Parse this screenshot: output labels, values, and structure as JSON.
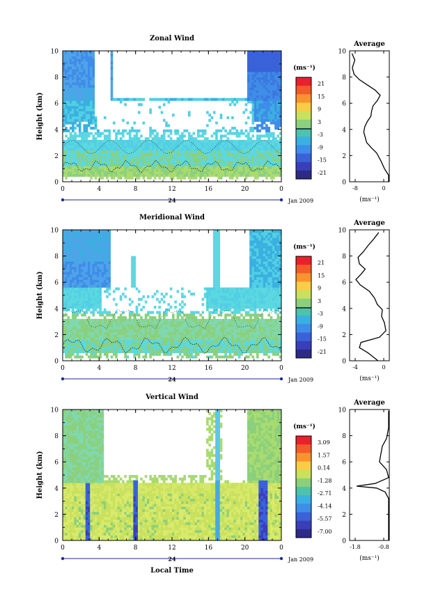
{
  "chart_data": [
    {
      "type": "heatmap",
      "title": "Zonal Wind",
      "ylabel": "Height (km)",
      "x_ticks": [
        "0",
        "4",
        "8",
        "12",
        "16",
        "20",
        "0"
      ],
      "y_ticks": [
        "0",
        "2",
        "4",
        "6",
        "8",
        "10"
      ],
      "date_marker": "24",
      "date_label": "Jan 2009",
      "colorbar": {
        "unit": "(ms⁻¹)",
        "ticks": [
          "21",
          "15",
          "9",
          "3",
          "-3",
          "-9",
          "-15",
          "-21"
        ]
      },
      "average": {
        "title": "Average",
        "unit": "(ms⁻¹)",
        "x_ticks": [
          "-8",
          "0"
        ],
        "y_ticks": [
          "0",
          "2",
          "4",
          "6",
          "8",
          "10"
        ],
        "profile": [
          [
            2.3,
            0.0
          ],
          [
            1.8,
            0.5
          ],
          [
            0.2,
            1.0
          ],
          [
            -0.8,
            1.6
          ],
          [
            -2.0,
            2.2
          ],
          [
            -3.5,
            2.6
          ],
          [
            -4.8,
            3.0
          ],
          [
            -5.2,
            3.4
          ],
          [
            -5.6,
            3.8
          ],
          [
            -5.3,
            4.2
          ],
          [
            -4.6,
            4.6
          ],
          [
            -3.6,
            5.0
          ],
          [
            -3.4,
            5.4
          ],
          [
            -3.0,
            5.8
          ],
          [
            -1.8,
            6.2
          ],
          [
            -1.0,
            6.6
          ],
          [
            -2.4,
            7.0
          ],
          [
            -4.6,
            7.4
          ],
          [
            -6.8,
            7.8
          ],
          [
            -8.3,
            8.2
          ],
          [
            -8.8,
            8.7
          ],
          [
            -8.1,
            9.3
          ],
          [
            -8.9,
            9.8
          ]
        ]
      }
    },
    {
      "type": "heatmap",
      "title": "Meridional Wind",
      "ylabel": "Height (km)",
      "x_ticks": [
        "0",
        "4",
        "8",
        "12",
        "16",
        "20",
        "0"
      ],
      "y_ticks": [
        "0",
        "2",
        "4",
        "6",
        "8",
        "10"
      ],
      "date_marker": "24",
      "date_label": "Jan 2009",
      "colorbar": {
        "unit": "(ms⁻¹)",
        "ticks": [
          "21",
          "15",
          "9",
          "3",
          "-3",
          "-9",
          "-15",
          "-21"
        ]
      },
      "average": {
        "title": "Average",
        "unit": "(ms⁻¹)",
        "x_ticks": [
          "-4",
          "0"
        ],
        "y_ticks": [
          "0",
          "2",
          "4",
          "6",
          "8",
          "10"
        ],
        "profile": [
          [
            -0.8,
            0.0
          ],
          [
            -2.2,
            0.6
          ],
          [
            -3.4,
            1.0
          ],
          [
            -3.2,
            1.4
          ],
          [
            -0.6,
            1.8
          ],
          [
            0.3,
            2.3
          ],
          [
            0.1,
            2.9
          ],
          [
            -0.3,
            3.4
          ],
          [
            -0.2,
            3.9
          ],
          [
            -0.9,
            4.3
          ],
          [
            -1.3,
            4.8
          ],
          [
            -2.0,
            5.3
          ],
          [
            -3.3,
            5.8
          ],
          [
            -3.9,
            6.2
          ],
          [
            -3.2,
            6.6
          ],
          [
            -2.6,
            7.0
          ],
          [
            -3.4,
            7.4
          ],
          [
            -3.6,
            7.9
          ],
          [
            -2.9,
            8.3
          ],
          [
            -2.2,
            8.8
          ],
          [
            -1.4,
            9.3
          ],
          [
            -0.7,
            9.8
          ]
        ]
      }
    },
    {
      "type": "heatmap",
      "title": "Vertical Wind",
      "ylabel": "Height (km)",
      "xlabel": "Local Time",
      "x_ticks": [
        "0",
        "4",
        "8",
        "12",
        "16",
        "20",
        "0"
      ],
      "y_ticks": [
        "0",
        "2",
        "4",
        "6",
        "8",
        "10"
      ],
      "date_marker": "24",
      "date_label": "Jan 2009",
      "colorbar": {
        "unit": "(ms⁻¹)",
        "ticks": [
          "3.09",
          "1.57",
          "0.14",
          "-1.28",
          "-2.71",
          "-4.14",
          "-5.57",
          "-7.00"
        ]
      },
      "average": {
        "title": "Average",
        "unit": "(ms⁻¹)",
        "x_ticks": [
          "-1.8",
          "-0.8"
        ],
        "y_ticks": [
          "0",
          "2",
          "4",
          "6",
          "8",
          "10"
        ],
        "profile": [
          [
            -0.22,
            0.0
          ],
          [
            -0.32,
            0.5
          ],
          [
            -0.45,
            1.0
          ],
          [
            -0.4,
            1.5
          ],
          [
            -0.55,
            2.0
          ],
          [
            -0.45,
            2.6
          ],
          [
            -0.6,
            3.2
          ],
          [
            -0.75,
            3.7
          ],
          [
            -1.05,
            4.0
          ],
          [
            -1.75,
            4.15
          ],
          [
            -1.1,
            4.35
          ],
          [
            -0.55,
            4.8
          ],
          [
            -0.7,
            5.4
          ],
          [
            -0.95,
            6.0
          ],
          [
            -0.9,
            6.6
          ],
          [
            -0.85,
            7.2
          ],
          [
            -0.7,
            7.8
          ],
          [
            -0.5,
            8.6
          ],
          [
            -0.35,
            9.3
          ],
          [
            -0.2,
            9.9
          ]
        ]
      }
    }
  ]
}
